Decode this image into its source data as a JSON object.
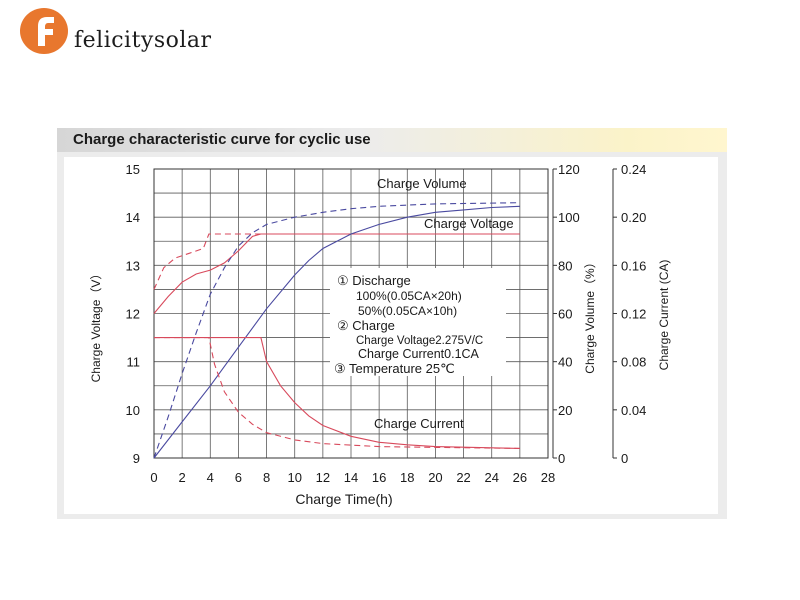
{
  "brand": {
    "logo_text": "felicitysolar",
    "accent": "#e8772e"
  },
  "chart_data": {
    "type": "line",
    "title": "Charge characteristic curve for cyclic use",
    "xlabel": "Charge Time(h)",
    "x_ticks": [
      0,
      2,
      4,
      6,
      8,
      10,
      12,
      14,
      16,
      18,
      20,
      22,
      24,
      26,
      28
    ],
    "xlim": [
      0,
      28
    ],
    "y_left": {
      "label": "Charge Voltage（V）",
      "ticks": [
        9,
        10,
        11,
        12,
        13,
        14,
        15
      ],
      "range": [
        9,
        15
      ]
    },
    "y_volume": {
      "label": "Charge Volume（%）",
      "ticks": [
        0,
        20,
        40,
        60,
        80,
        100,
        120
      ],
      "range": [
        0,
        120
      ]
    },
    "y_current": {
      "label": "Charge Current (CA)",
      "ticks": [
        "0",
        "0.04",
        "0.08",
        "0.12",
        "0.16",
        "0.20",
        "0.24"
      ],
      "range": [
        0,
        0.24
      ]
    },
    "grid": true,
    "annotations": {
      "charge_volume": "Charge Volume",
      "charge_voltage": "Charge Voltage",
      "charge_current": "Charge Current"
    },
    "legend_box": {
      "line1": "①  Discharge",
      "line2": "100%(0.05CA×20h)",
      "line3": "50%(0.05CA×10h)",
      "line4": "②  Charge",
      "line5": "Charge Voltage2.275V/C",
      "line6": "Charge Current0.1CA",
      "line7": "③ Temperature 25℃"
    },
    "colors": {
      "voltage": "#d84a5c",
      "current": "#d84a5c",
      "volume": "#4a4aa0",
      "grid": "#5a5a5a"
    },
    "series": [
      {
        "axis": "voltage",
        "style": "solid",
        "points": [
          [
            0,
            12.0
          ],
          [
            1,
            12.35
          ],
          [
            2,
            12.65
          ],
          [
            3,
            12.82
          ],
          [
            4,
            12.9
          ],
          [
            5,
            13.05
          ],
          [
            6,
            13.3
          ],
          [
            7,
            13.6
          ],
          [
            7.6,
            13.65
          ],
          [
            26,
            13.65
          ]
        ]
      },
      {
        "axis": "voltage",
        "style": "dashed",
        "points": [
          [
            0,
            12.5
          ],
          [
            0.7,
            12.95
          ],
          [
            1.5,
            13.15
          ],
          [
            2.5,
            13.25
          ],
          [
            3.5,
            13.35
          ],
          [
            3.9,
            13.65
          ],
          [
            26,
            13.65
          ]
        ]
      },
      {
        "axis": "volume",
        "style": "solid",
        "points": [
          [
            0,
            0
          ],
          [
            2,
            15
          ],
          [
            4,
            30
          ],
          [
            6,
            46
          ],
          [
            8,
            62
          ],
          [
            10,
            76
          ],
          [
            11,
            82
          ],
          [
            12,
            87
          ],
          [
            14,
            93
          ],
          [
            16,
            97
          ],
          [
            18,
            100
          ],
          [
            20,
            102
          ],
          [
            22,
            103
          ],
          [
            24,
            104
          ],
          [
            26,
            104.5
          ]
        ]
      },
      {
        "axis": "volume",
        "style": "dashed",
        "points": [
          [
            0,
            0
          ],
          [
            1,
            17
          ],
          [
            2,
            35
          ],
          [
            3,
            52
          ],
          [
            4,
            68
          ],
          [
            5,
            79
          ],
          [
            6,
            88
          ],
          [
            7,
            93.5
          ],
          [
            8,
            97
          ],
          [
            10,
            100
          ],
          [
            12,
            102
          ],
          [
            14,
            103.5
          ],
          [
            16,
            104.5
          ],
          [
            20,
            105.5
          ],
          [
            26,
            106
          ]
        ]
      },
      {
        "axis": "current",
        "style": "solid",
        "points": [
          [
            0,
            0.1
          ],
          [
            7.6,
            0.1
          ],
          [
            8,
            0.08
          ],
          [
            9,
            0.06
          ],
          [
            10,
            0.046
          ],
          [
            11,
            0.035
          ],
          [
            12,
            0.027
          ],
          [
            14,
            0.018
          ],
          [
            16,
            0.013
          ],
          [
            18,
            0.011
          ],
          [
            20,
            0.0095
          ],
          [
            24,
            0.0085
          ],
          [
            26,
            0.008
          ]
        ]
      },
      {
        "axis": "current",
        "style": "dashed",
        "points": [
          [
            0,
            0.1
          ],
          [
            3.9,
            0.1
          ],
          [
            4.3,
            0.078
          ],
          [
            5,
            0.055
          ],
          [
            6,
            0.038
          ],
          [
            7,
            0.028
          ],
          [
            8,
            0.021
          ],
          [
            10,
            0.015
          ],
          [
            12,
            0.012
          ],
          [
            16,
            0.0095
          ],
          [
            20,
            0.0088
          ],
          [
            26,
            0.008
          ]
        ]
      }
    ]
  }
}
